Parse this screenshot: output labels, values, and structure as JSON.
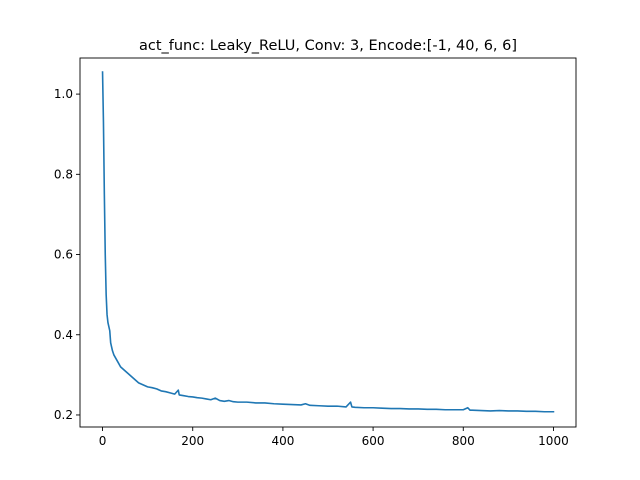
{
  "chart_data": {
    "type": "line",
    "title": "act_func: Leaky_ReLU, Conv: 3, Encode:[-1, 40, 6, 6]",
    "xlabel": "",
    "ylabel": "",
    "xlim": [
      -50,
      1050
    ],
    "ylim": [
      0.17,
      1.09
    ],
    "xticks": [
      0,
      200,
      400,
      600,
      800,
      1000
    ],
    "xtick_labels": [
      "0",
      "200",
      "400",
      "600",
      "800",
      "1000"
    ],
    "yticks": [
      0.2,
      0.4,
      0.6,
      0.8,
      1.0
    ],
    "ytick_labels": [
      "0.2",
      "0.4",
      "0.6",
      "0.8",
      "1.0"
    ],
    "grid": false,
    "series": [
      {
        "color": "#1f77b4",
        "x": [
          0,
          2,
          4,
          6,
          8,
          10,
          12,
          14,
          16,
          18,
          20,
          22,
          25,
          30,
          35,
          40,
          45,
          50,
          55,
          60,
          65,
          70,
          75,
          80,
          90,
          100,
          110,
          120,
          130,
          140,
          150,
          160,
          168,
          170,
          180,
          190,
          200,
          210,
          220,
          230,
          240,
          250,
          260,
          270,
          280,
          290,
          300,
          320,
          340,
          360,
          380,
          400,
          420,
          440,
          450,
          460,
          480,
          500,
          520,
          540,
          550,
          553,
          560,
          580,
          600,
          620,
          640,
          660,
          680,
          700,
          720,
          740,
          760,
          780,
          800,
          810,
          815,
          820,
          840,
          860,
          880,
          900,
          920,
          940,
          960,
          980,
          1000
        ],
        "y": [
          1.055,
          0.93,
          0.75,
          0.6,
          0.5,
          0.45,
          0.43,
          0.42,
          0.41,
          0.38,
          0.37,
          0.36,
          0.35,
          0.34,
          0.33,
          0.32,
          0.315,
          0.31,
          0.305,
          0.3,
          0.295,
          0.29,
          0.285,
          0.28,
          0.275,
          0.27,
          0.268,
          0.265,
          0.26,
          0.258,
          0.255,
          0.252,
          0.262,
          0.25,
          0.248,
          0.246,
          0.245,
          0.243,
          0.242,
          0.24,
          0.238,
          0.242,
          0.236,
          0.234,
          0.236,
          0.233,
          0.232,
          0.232,
          0.23,
          0.23,
          0.228,
          0.227,
          0.226,
          0.225,
          0.228,
          0.224,
          0.223,
          0.222,
          0.222,
          0.22,
          0.232,
          0.22,
          0.219,
          0.218,
          0.218,
          0.217,
          0.216,
          0.216,
          0.215,
          0.215,
          0.214,
          0.214,
          0.213,
          0.213,
          0.213,
          0.218,
          0.212,
          0.212,
          0.211,
          0.21,
          0.211,
          0.21,
          0.21,
          0.209,
          0.209,
          0.208,
          0.208
        ]
      }
    ]
  }
}
